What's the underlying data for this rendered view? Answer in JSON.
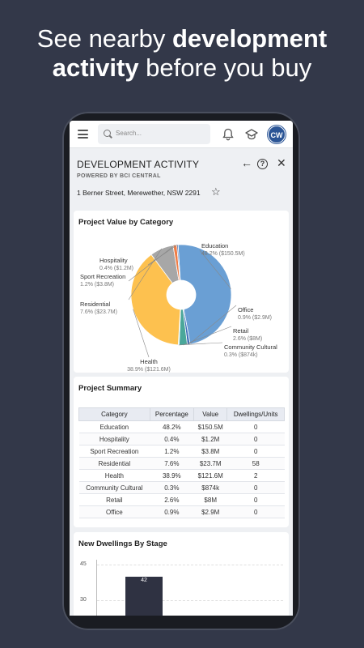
{
  "promo": {
    "line1_normal": "See nearby ",
    "line1_bold": "development",
    "line2_bold": "activity",
    "line2_normal": " before you buy"
  },
  "topbar": {
    "search_placeholder": "Search...",
    "avatar_initials": "CW"
  },
  "header": {
    "title": "DEVELOPMENT ACTIVITY",
    "subtitle": "POWERED BY BCI CENTRAL",
    "address": "1 Berner Street, Merewether, NSW 2291",
    "star_glyph": "☆",
    "back_glyph": "←",
    "help_glyph": "?",
    "close_glyph": "✕"
  },
  "pie_card": {
    "title": "Project Value by Category"
  },
  "chart_data": [
    {
      "type": "pie",
      "title": "Project Value by Category",
      "donut": true,
      "slices": [
        {
          "label": "Education",
          "percent": 48.2,
          "value_text": "48.2% ($150.5M)",
          "value": 150.5,
          "color": "#6a9fd4"
        },
        {
          "label": "Office",
          "percent": 0.9,
          "value_text": "0.9% ($2.9M)",
          "value": 2.9,
          "color": "#3f6fb8"
        },
        {
          "label": "Retail",
          "percent": 2.6,
          "value_text": "2.6% ($8M)",
          "value": 8,
          "color": "#4aa79a"
        },
        {
          "label": "Community Cultural",
          "percent": 0.3,
          "value_text": "0.3% ($874k)",
          "value": 0.874,
          "color": "#8ed8c4"
        },
        {
          "label": "Health",
          "percent": 38.9,
          "value_text": "38.9% ($121.6M)",
          "value": 121.6,
          "color": "#fdc14f"
        },
        {
          "label": "Residential",
          "percent": 7.6,
          "value_text": "7.6% ($23.7M)",
          "value": 23.7,
          "color": "#a7a7a7"
        },
        {
          "label": "Sport Recreation",
          "percent": 1.2,
          "value_text": "1.2% ($3.8M)",
          "value": 3.8,
          "color": "#ef7d46"
        },
        {
          "label": "Hospitality",
          "percent": 0.4,
          "value_text": "0.4% ($1.2M)",
          "value": 1.2,
          "color": "#4a69a9"
        }
      ]
    },
    {
      "type": "bar",
      "title": "New Dwellings By Stage",
      "categories": [
        ""
      ],
      "values": [
        42
      ],
      "data_labels": [
        "42"
      ],
      "yticks": [
        "45",
        "30"
      ],
      "ylim": [
        0,
        45
      ],
      "color": "#2f3242"
    }
  ],
  "summary": {
    "title": "Project Summary",
    "headers": [
      "Category",
      "Percentage",
      "Value",
      "Dwellings/Units"
    ],
    "rows": [
      [
        "Education",
        "48.2%",
        "$150.5M",
        "0"
      ],
      [
        "Hospitality",
        "0.4%",
        "$1.2M",
        "0"
      ],
      [
        "Sport Recreation",
        "1.2%",
        "$3.8M",
        "0"
      ],
      [
        "Residential",
        "7.6%",
        "$23.7M",
        "58"
      ],
      [
        "Health",
        "38.9%",
        "$121.6M",
        "2"
      ],
      [
        "Community Cultural",
        "0.3%",
        "$874k",
        "0"
      ],
      [
        "Retail",
        "2.6%",
        "$8M",
        "0"
      ],
      [
        "Office",
        "0.9%",
        "$2.9M",
        "0"
      ]
    ]
  },
  "dwellings": {
    "title": "New Dwellings By Stage"
  }
}
